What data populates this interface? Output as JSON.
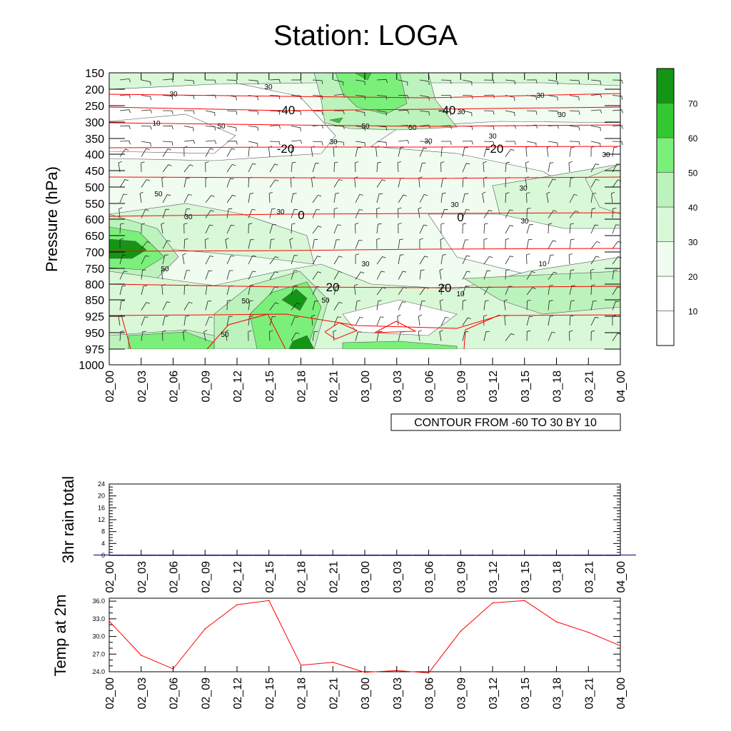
{
  "title": "Station: LOGA",
  "time_labels": [
    "02_00",
    "02_03",
    "02_06",
    "02_09",
    "02_12",
    "02_15",
    "02_18",
    "02_21",
    "03_00",
    "03_03",
    "03_06",
    "03_09",
    "03_12",
    "03_15",
    "03_18",
    "03_21",
    "04_00"
  ],
  "colors": {
    "fill_levels": [
      "#ffffff",
      "#f0fcf0",
      "#d8f8d8",
      "#bcf2bc",
      "#7af07a",
      "#32c832",
      "#149614"
    ],
    "contour_line": "#000000",
    "temperature_contour": "#ff0000",
    "temp_series": "#ff0000",
    "rain_bar": "#000080"
  },
  "chart_data": [
    {
      "type": "heatmap",
      "name": "time-height wind speed / temperature cross-section",
      "title": "Station: LOGA",
      "ylabel": "Pressure (hPa)",
      "y_ticks": [
        "150",
        "200",
        "250",
        "300",
        "350",
        "400",
        "450",
        "500",
        "550",
        "600",
        "650",
        "700",
        "750",
        "800",
        "850",
        "925",
        "950",
        "975",
        "1000"
      ],
      "x_ticks": [
        "02_00",
        "02_03",
        "02_06",
        "02_09",
        "02_12",
        "02_15",
        "02_18",
        "02_21",
        "03_00",
        "03_03",
        "03_06",
        "03_09",
        "03_12",
        "03_15",
        "03_18",
        "03_21",
        "04_00"
      ],
      "colorbar_ticks": [
        "10",
        "20",
        "30",
        "40",
        "50",
        "60",
        "70"
      ],
      "info_label": "CONTOUR FROM -60 TO 30 BY 10",
      "temperature_contour_labels": [
        "-40",
        "-40",
        "-20",
        "-20",
        "0",
        "0",
        "20",
        "20"
      ],
      "speed_contour_labels": [
        "30",
        "30",
        "30",
        "30",
        "30",
        "30",
        "30",
        "30",
        "30",
        "30",
        "30",
        "30",
        "30",
        "30",
        "30",
        "10",
        "10",
        "10",
        "50",
        "50",
        "50",
        "50",
        "50",
        "50",
        "50",
        "50"
      ]
    },
    {
      "type": "bar",
      "name": "3hr rain total",
      "ylabel": "3hr rain total",
      "categories": [
        "02_00",
        "02_03",
        "02_06",
        "02_09",
        "02_12",
        "02_15",
        "02_18",
        "02_21",
        "03_00",
        "03_03",
        "03_06",
        "03_09",
        "03_12",
        "03_15",
        "03_18",
        "03_21",
        "04_00"
      ],
      "values": [
        0,
        0,
        0,
        0,
        0,
        0,
        0.1,
        0,
        0,
        0,
        0,
        0,
        0,
        0,
        0,
        0,
        0
      ],
      "ylim": [
        0,
        24
      ],
      "y_ticks": [
        "0",
        "4",
        "8",
        "12",
        "16",
        "20",
        "24"
      ]
    },
    {
      "type": "line",
      "name": "Temp at 2m",
      "ylabel": "Temp at 2m",
      "categories": [
        "02_00",
        "02_03",
        "02_06",
        "02_09",
        "02_12",
        "02_15",
        "02_18",
        "02_21",
        "03_00",
        "03_03",
        "03_06",
        "03_09",
        "03_12",
        "03_15",
        "03_18",
        "03_21",
        "04_00"
      ],
      "values": [
        32.6,
        26.8,
        24.5,
        31.3,
        35.4,
        36.1,
        25.1,
        25.6,
        23.9,
        24.2,
        23.8,
        30.9,
        35.7,
        36.1,
        32.5,
        30.7,
        28.4
      ],
      "ylim": [
        24,
        36.5
      ],
      "y_ticks": [
        "24.0",
        "27.0",
        "30.0",
        "33.0",
        "36.0"
      ]
    }
  ]
}
